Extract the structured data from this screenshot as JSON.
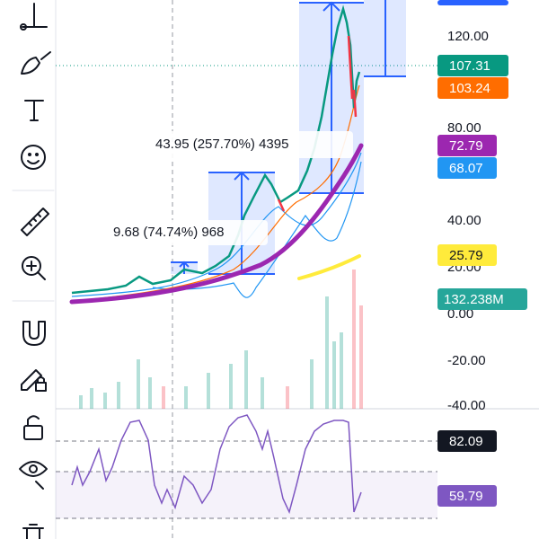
{
  "price_axis": {
    "labels": [
      "120.00",
      "80.00",
      "40.00",
      "20.00",
      "0.00",
      "-20.00",
      "-40.00"
    ]
  },
  "price_tags": [
    "107.31",
    "103.24",
    "72.79",
    "68.07",
    "25.79",
    "132.238M",
    "82.09",
    "59.79"
  ],
  "measurements": [
    "9.68 (74.74%) 968",
    "43.95 (257.70%) 4395"
  ]
}
